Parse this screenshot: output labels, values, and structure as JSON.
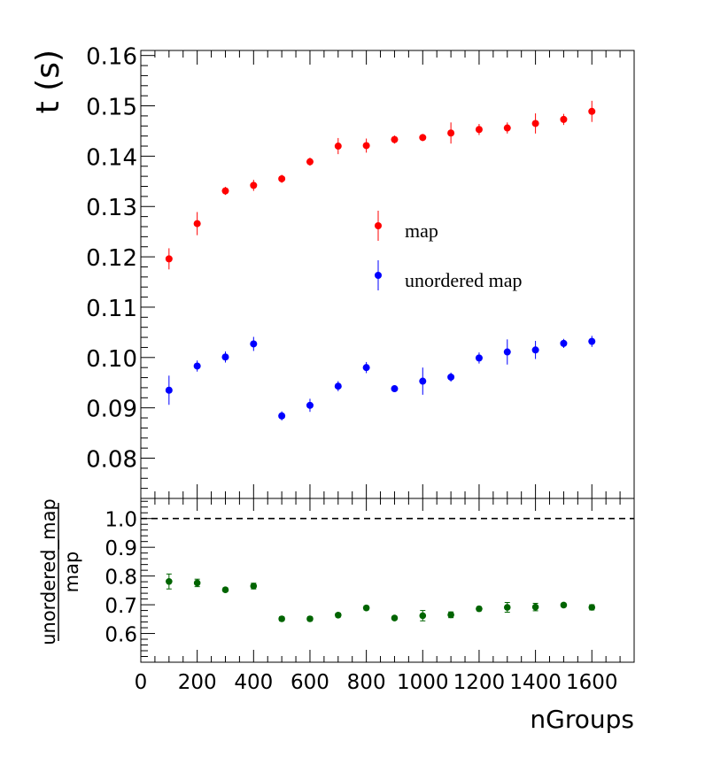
{
  "chart_data": [
    {
      "type": "scatter",
      "title": "",
      "xlabel": "",
      "ylabel": "t (s)",
      "xlim": [
        0,
        1750
      ],
      "ylim": [
        0.072,
        0.161
      ],
      "grid": false,
      "legend_position": "center-right",
      "x_ticks": [
        0,
        200,
        400,
        600,
        800,
        1000,
        1200,
        1400,
        1600
      ],
      "y_ticks": [
        {
          "v": 0.08,
          "label": "0.08"
        },
        {
          "v": 0.09,
          "label": "0.09"
        },
        {
          "v": 0.1,
          "label": "0.10"
        },
        {
          "v": 0.11,
          "label": "0.11"
        },
        {
          "v": 0.12,
          "label": "0.12"
        },
        {
          "v": 0.13,
          "label": "0.13"
        },
        {
          "v": 0.14,
          "label": "0.14"
        },
        {
          "v": 0.15,
          "label": "0.15"
        },
        {
          "v": 0.16,
          "label": "0.16"
        }
      ],
      "x": [
        100,
        200,
        300,
        400,
        500,
        600,
        700,
        800,
        900,
        1000,
        1100,
        1200,
        1300,
        1400,
        1500,
        1600
      ],
      "series": [
        {
          "name": "map",
          "color": "#ff0000",
          "values": [
            0.1196,
            0.1266,
            0.1331,
            0.1342,
            0.1355,
            0.1389,
            0.142,
            0.1421,
            0.1433,
            0.1437,
            0.1446,
            0.1453,
            0.1456,
            0.1465,
            0.1473,
            0.1489
          ],
          "errors": [
            0.0021,
            0.0023,
            0.0008,
            0.0011,
            0.0008,
            0.0008,
            0.0016,
            0.0014,
            0.0008,
            0.0007,
            0.0021,
            0.0011,
            0.0011,
            0.002,
            0.0011,
            0.0021
          ]
        },
        {
          "name": "unordered map",
          "color": "#0000ff",
          "values": [
            0.0935,
            0.0983,
            0.1001,
            0.1027,
            0.0884,
            0.0905,
            0.0943,
            0.098,
            0.0938,
            0.0953,
            0.0961,
            0.0999,
            0.1011,
            0.1015,
            0.1028,
            0.1032
          ],
          "errors": [
            0.0029,
            0.0011,
            0.0011,
            0.0014,
            0.0009,
            0.0013,
            0.001,
            0.0011,
            0.0006,
            0.0027,
            0.0009,
            0.0011,
            0.0025,
            0.0018,
            0.0009,
            0.0011
          ]
        }
      ]
    },
    {
      "type": "scatter",
      "title": "",
      "xlabel": "nGroups",
      "ylabel_numerator": "unordered_map",
      "ylabel_denominator": "map",
      "xlim": [
        0,
        1750
      ],
      "ylim": [
        0.5,
        1.07
      ],
      "grid": false,
      "reference_line": 1.0,
      "x_ticks": [
        {
          "v": 0,
          "label": "0"
        },
        {
          "v": 200,
          "label": "200"
        },
        {
          "v": 400,
          "label": "400"
        },
        {
          "v": 600,
          "label": "600"
        },
        {
          "v": 800,
          "label": "800"
        },
        {
          "v": 1000,
          "label": "1000"
        },
        {
          "v": 1200,
          "label": "1200"
        },
        {
          "v": 1400,
          "label": "1400"
        },
        {
          "v": 1600,
          "label": "1600"
        }
      ],
      "y_ticks": [
        {
          "v": 0.6,
          "label": "0.6"
        },
        {
          "v": 0.7,
          "label": "0.7"
        },
        {
          "v": 0.8,
          "label": "0.8"
        },
        {
          "v": 0.9,
          "label": "0.9"
        },
        {
          "v": 1.0,
          "label": "1.0"
        }
      ],
      "x": [
        100,
        200,
        300,
        400,
        500,
        600,
        700,
        800,
        900,
        1000,
        1100,
        1200,
        1300,
        1400,
        1500,
        1600
      ],
      "series": [
        {
          "color": "#006400",
          "values": [
            0.781,
            0.776,
            0.752,
            0.765,
            0.651,
            0.651,
            0.664,
            0.689,
            0.654,
            0.662,
            0.665,
            0.686,
            0.691,
            0.692,
            0.699,
            0.691
          ],
          "errors": [
            0.026,
            0.013,
            0.007,
            0.01,
            0.007,
            0.007,
            0.007,
            0.007,
            0.006,
            0.018,
            0.01,
            0.007,
            0.017,
            0.013,
            0.006,
            0.009
          ]
        }
      ]
    }
  ]
}
